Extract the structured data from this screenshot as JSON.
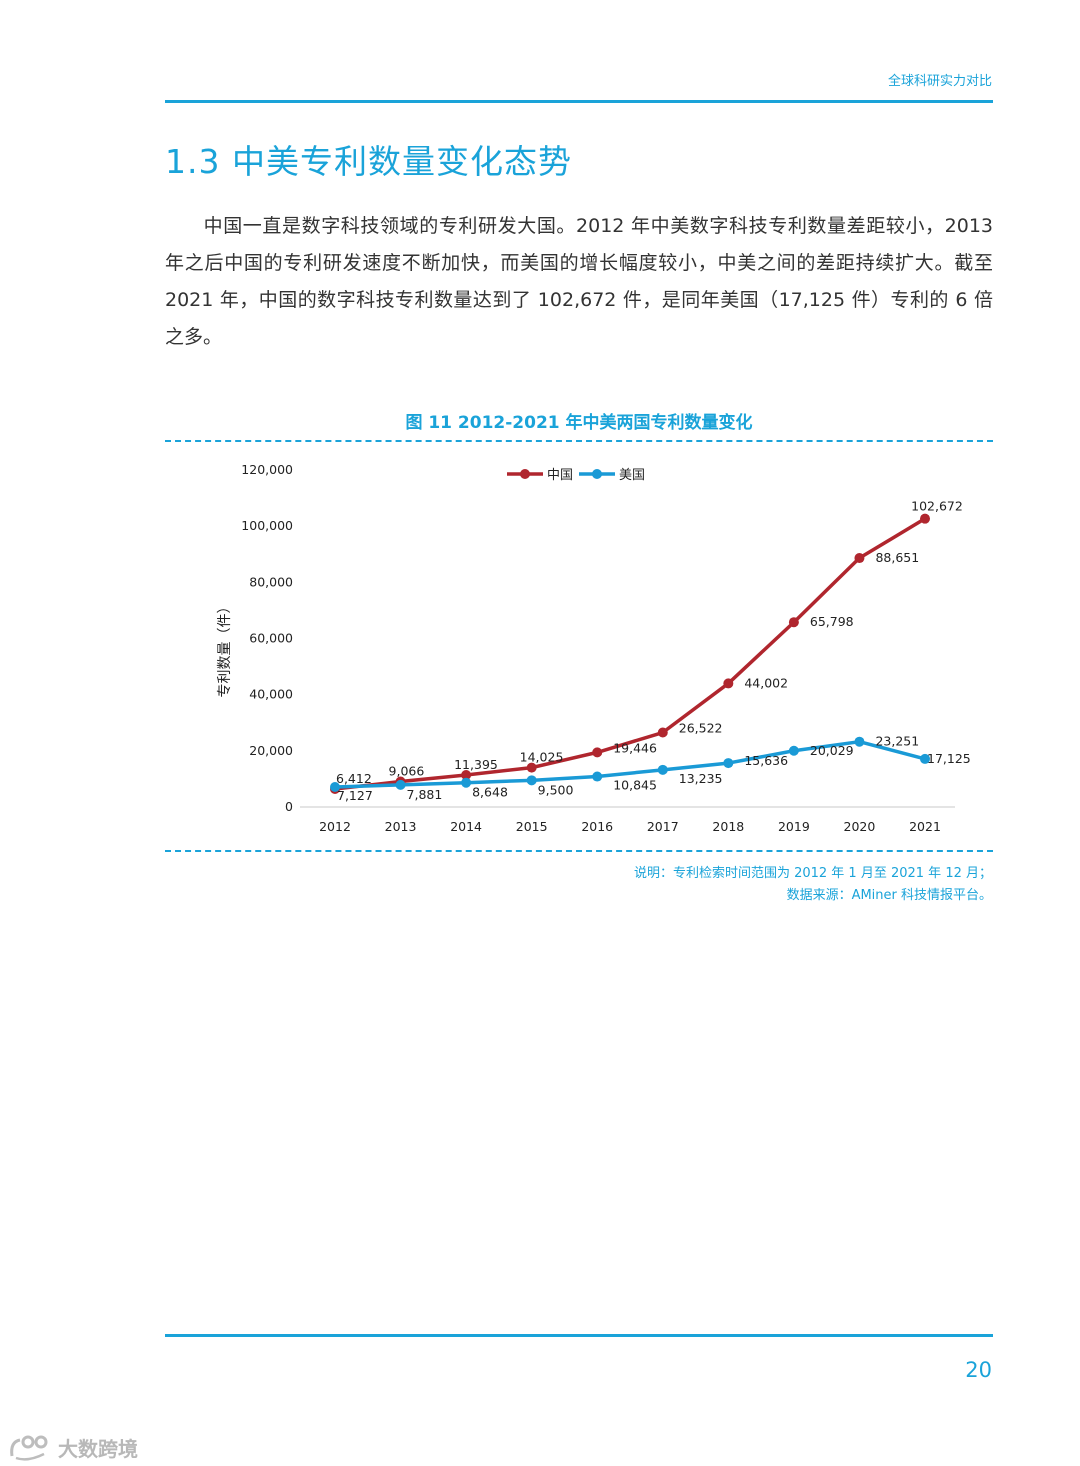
{
  "header": {
    "label": "全球科研实力对比"
  },
  "section": {
    "title": "1.3 中美专利数量变化态势"
  },
  "body": {
    "paragraph": "中国一直是数字科技领域的专利研发大国。2012 年中美数字科技专利数量差距较小，2013 年之后中国的专利研发速度不断加快，而美国的增长幅度较小，中美之间的差距持续扩大。截至 2021 年，中国的数字科技专利数量达到了 102,672 件，是同年美国（17,125 件）专利的 6 倍之多。"
  },
  "figure": {
    "caption": "图 11  2012-2021 年中美两国专利数量变化",
    "note_line1": "说明：专利检索时间范围为 2012 年 1 月至 2021 年 12 月；",
    "note_line2": "数据来源：AMiner 科技情报平台。"
  },
  "chart_data": {
    "type": "line",
    "x": [
      "2012",
      "2013",
      "2014",
      "2015",
      "2016",
      "2017",
      "2018",
      "2019",
      "2020",
      "2021"
    ],
    "ylabel": "专利数量（件）",
    "ylim": [
      0,
      120000
    ],
    "yticks": [
      0,
      20000,
      40000,
      60000,
      80000,
      100000,
      120000
    ],
    "ytick_labels": [
      "0",
      "20,000",
      "40,000",
      "60,000",
      "80,000",
      "100,000",
      "120,000"
    ],
    "legend_position": "top-center",
    "grid": false,
    "series": [
      {
        "name": "中国",
        "color": "#b0262e",
        "values": [
          6412,
          9066,
          11395,
          14025,
          19446,
          26522,
          44002,
          65798,
          88651,
          102672
        ],
        "labels": [
          "6,412",
          "9,066",
          "11,395",
          "14,025",
          "19,446",
          "26,522",
          "44,002",
          "65,798",
          "88,651",
          "102,672"
        ]
      },
      {
        "name": "美国",
        "color": "#1a9ad6",
        "values": [
          7127,
          7881,
          8648,
          9500,
          10845,
          13235,
          15636,
          20029,
          23251,
          17125
        ],
        "labels": [
          "7,127",
          "7,881",
          "8,648",
          "9,500",
          "10,845",
          "13,235",
          "15,636",
          "20,029",
          "23,251",
          "17,125"
        ]
      }
    ]
  },
  "footer": {
    "page_number": "20"
  },
  "watermark": {
    "text": "大数跨境"
  },
  "colors": {
    "accent": "#1aa3d9"
  }
}
